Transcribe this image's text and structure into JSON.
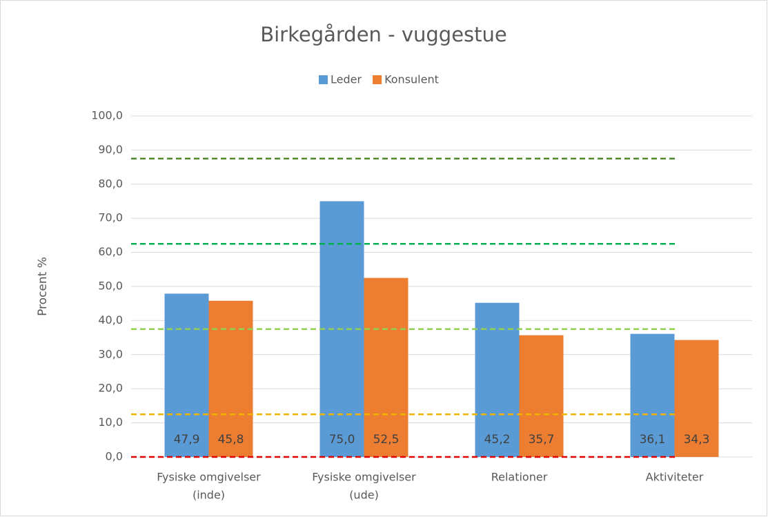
{
  "chart_data": {
    "type": "bar",
    "title": "Birkegården - vuggestue",
    "y_label": "Procent %",
    "categories": [
      [
        "Fysiske omgivelser",
        "(inde)"
      ],
      [
        "Fysiske omgivelser",
        "(ude)"
      ],
      [
        "Relationer"
      ],
      [
        "Aktiviteter"
      ]
    ],
    "series": [
      {
        "name": "Leder",
        "color": "#5b9bd5",
        "values": [
          47.9,
          75.0,
          45.2,
          36.1
        ],
        "value_labels": [
          "47,9",
          "75,0",
          "45,2",
          "36,1"
        ]
      },
      {
        "name": "Konsulent",
        "color": "#ed7d31",
        "values": [
          45.8,
          52.5,
          35.7,
          34.3
        ],
        "value_labels": [
          "45,8",
          "52,5",
          "35,7",
          "34,3"
        ]
      }
    ],
    "reference_lines": [
      {
        "value": 0,
        "color": "#e00000"
      },
      {
        "value": 12.5,
        "color": "#f0b400"
      },
      {
        "value": 37.5,
        "color": "#92d050"
      },
      {
        "value": 62.5,
        "color": "#00b050"
      },
      {
        "value": 87.5,
        "color": "#4e8a2a"
      }
    ],
    "ylim": [
      0,
      100
    ],
    "yticks": [
      {
        "value": 0,
        "label": "0,0"
      },
      {
        "value": 10,
        "label": "10,0"
      },
      {
        "value": 20,
        "label": "20,0"
      },
      {
        "value": 30,
        "label": "30,0"
      },
      {
        "value": 40,
        "label": "40,0"
      },
      {
        "value": 50,
        "label": "50,0"
      },
      {
        "value": 60,
        "label": "60,0"
      },
      {
        "value": 70,
        "label": "70,0"
      },
      {
        "value": 80,
        "label": "80,0"
      },
      {
        "value": 90,
        "label": "90,0"
      },
      {
        "value": 100,
        "label": "100,0"
      }
    ],
    "grid": true,
    "legend": "top"
  }
}
